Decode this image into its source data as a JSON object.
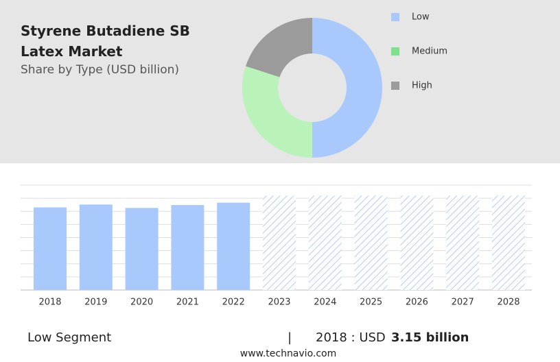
{
  "title": "Styrene Butadiene SB Latex Market",
  "subtitle": "Share by Type (USD billion)",
  "chart_data": [
    {
      "type": "donut",
      "categories": [
        "Low",
        "Medium",
        "High"
      ],
      "values": [
        50,
        30,
        20
      ],
      "colors": [
        "#a9c9fd",
        "#b9f3b9",
        "#9b9b9b"
      ],
      "legend_colors": [
        "#a9c9fd",
        "#7fe08c",
        "#9b9b9b"
      ]
    },
    {
      "type": "bar",
      "categories": [
        "2018",
        "2019",
        "2020",
        "2021",
        "2022",
        "2023",
        "2024",
        "2025",
        "2026",
        "2027",
        "2028"
      ],
      "values": [
        3.15,
        3.26,
        3.13,
        3.24,
        3.33,
        3.6,
        3.6,
        3.6,
        3.6,
        3.6,
        3.6
      ],
      "hatched": [
        false,
        false,
        false,
        false,
        false,
        true,
        true,
        true,
        true,
        true,
        true
      ],
      "color": "#a9c9fd",
      "ylim": [
        0,
        4
      ],
      "grid": true
    }
  ],
  "footer": {
    "segment": "Low Segment",
    "separator": "|",
    "year_label": "2018 : USD",
    "value": "3.15 billion",
    "source": "www.technavio.com"
  }
}
